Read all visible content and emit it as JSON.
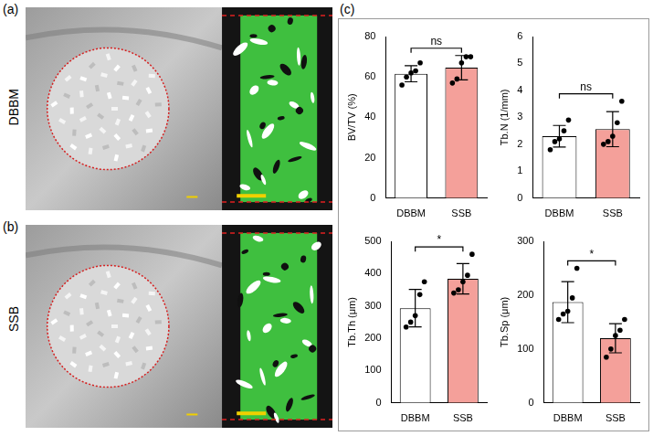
{
  "panels": [
    {
      "label": "(a)",
      "row_label": "DBBM"
    },
    {
      "label": "(b)",
      "row_label": "SSB"
    },
    {
      "label": "(c)"
    }
  ],
  "chart_data": [
    {
      "type": "bar",
      "y_label": "BV/TV (%)",
      "categories": [
        "DBBM",
        "SSB"
      ],
      "values": [
        61.6,
        64.6
      ],
      "errors": [
        4,
        6
      ],
      "points": [
        [
          56,
          60,
          62,
          63,
          67
        ],
        [
          57,
          59,
          67,
          70,
          70
        ]
      ],
      "colors": [
        "#ffffff",
        "#f4a09a"
      ],
      "ylim": [
        0,
        80
      ],
      "yticks": [
        0,
        20,
        40,
        60,
        80
      ],
      "grid": false,
      "annotations": [
        "ns"
      ]
    },
    {
      "type": "bar",
      "y_label": "Tb.N (1/mm)",
      "categories": [
        "DBBM",
        "SSB"
      ],
      "values": [
        2.3,
        2.56
      ],
      "errors": [
        0.4,
        0.65
      ],
      "points": [
        [
          1.8,
          2.1,
          2.2,
          2.5,
          2.9
        ],
        [
          2.0,
          2.1,
          2.3,
          2.8,
          3.6
        ]
      ],
      "colors": [
        "#ffffff",
        "#f4a09a"
      ],
      "ylim": [
        0,
        6
      ],
      "yticks": [
        0,
        1,
        2,
        3,
        4,
        5,
        6
      ],
      "grid": false,
      "annotations": [
        "ns"
      ]
    },
    {
      "type": "bar",
      "y_label": "Tb.Th (μm)",
      "categories": [
        "DBBM",
        "SSB"
      ],
      "values": [
        293,
        384
      ],
      "errors": [
        58,
        47
      ],
      "points": [
        [
          235,
          250,
          270,
          335,
          375
        ],
        [
          340,
          350,
          375,
          395,
          460
        ]
      ],
      "colors": [
        "#ffffff",
        "#f4a09a"
      ],
      "ylim": [
        0,
        500
      ],
      "yticks": [
        0,
        100,
        200,
        300,
        400,
        500
      ],
      "grid": false,
      "annotations": [
        "*"
      ]
    },
    {
      "type": "bar",
      "y_label": "Tb.Sp (μm)",
      "categories": [
        "DBBM",
        "SSB"
      ],
      "values": [
        187,
        120
      ],
      "errors": [
        38,
        27
      ],
      "points": [
        [
          155,
          165,
          170,
          195,
          250
        ],
        [
          85,
          100,
          125,
          135,
          155
        ]
      ],
      "colors": [
        "#ffffff",
        "#f4a09a"
      ],
      "ylim": [
        0,
        300
      ],
      "yticks": [
        0,
        100,
        200,
        300
      ],
      "grid": false,
      "annotations": [
        "*"
      ]
    }
  ]
}
